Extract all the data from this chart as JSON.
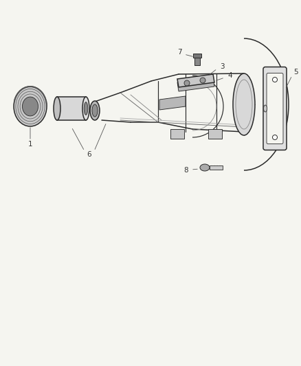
{
  "background_color": "#f5f5f0",
  "line_color": "#2a2a2a",
  "label_color": "#333333",
  "fig_width": 4.38,
  "fig_height": 5.33,
  "dpi": 100,
  "label_fs": 7.5,
  "lw_main": 1.1,
  "lw_thin": 0.65,
  "lw_med": 0.85
}
